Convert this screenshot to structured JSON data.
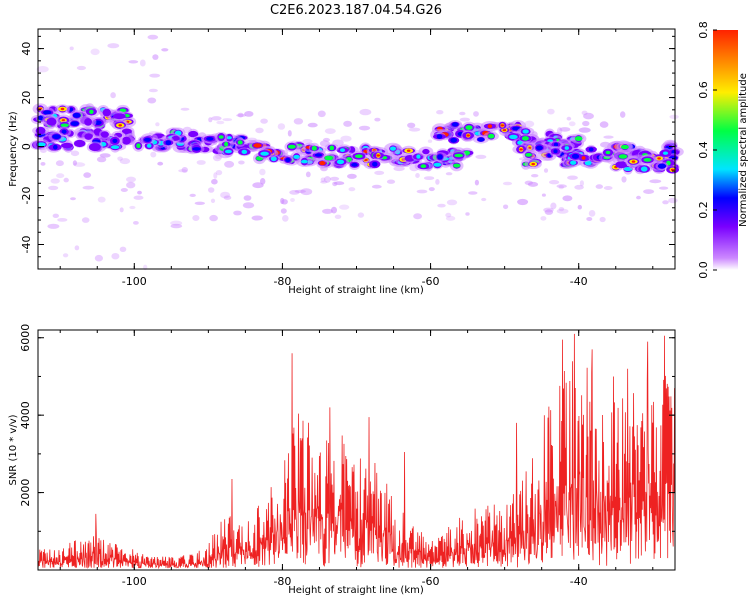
{
  "title": "C2E6.2023.187.04.54.G26",
  "colors": {
    "snr_line": "#ee2222",
    "axes": "#000000",
    "colormap": [
      "#ffffff",
      "#cc88ff",
      "#7a00ff",
      "#0000ff",
      "#00e5ff",
      "#00ff44",
      "#ffee00",
      "#ff2200"
    ]
  },
  "chart_data": [
    {
      "type": "heatmap",
      "xlabel": "Height of straight line (km)",
      "ylabel": "Frequency (Hz)",
      "xlim": [
        -113,
        -27
      ],
      "ylim": [
        -50,
        48
      ],
      "xticks": [
        -100,
        -80,
        -60,
        -40
      ],
      "yticks": [
        -40,
        -20,
        0,
        20,
        40
      ],
      "xtick_labels": [
        "-100",
        "-80",
        "-60",
        "-40"
      ],
      "ytick_labels": [
        "-40",
        "-20",
        "0",
        "20",
        "40"
      ],
      "grid": false,
      "colorbar": {
        "label": "Normalized spectral amplitude",
        "range": [
          0,
          0.8
        ],
        "ticks": [
          0,
          0.2,
          0.4,
          0.6,
          0.8
        ],
        "tick_labels": [
          "0.0",
          "0.2",
          "0.4",
          "0.6",
          "0.8"
        ]
      },
      "bands": [
        {
          "x_start": -113,
          "x_end": -100,
          "freq": 12,
          "amp": 0.55
        },
        {
          "x_start": -113,
          "x_end": -100,
          "freq": 3,
          "amp": 0.35
        },
        {
          "x_start": -100,
          "x_end": -92,
          "freq": 2.5,
          "amp": 0.4
        },
        {
          "x_start": -92,
          "x_end": -84,
          "freq": 1,
          "amp": 0.45
        },
        {
          "x_start": -84,
          "x_end": -76,
          "freq": -3,
          "amp": 0.75
        },
        {
          "x_start": -76,
          "x_end": -68,
          "freq": -4,
          "amp": 0.7
        },
        {
          "x_start": -68,
          "x_end": -62,
          "freq": -4,
          "amp": 0.6
        },
        {
          "x_start": -62,
          "x_end": -55,
          "freq": -5,
          "amp": 0.45
        },
        {
          "x_start": -60,
          "x_end": -48,
          "freq": 6,
          "amp": 0.75
        },
        {
          "x_start": -48,
          "x_end": -40,
          "freq": 3,
          "amp": 0.45
        },
        {
          "x_start": -48,
          "x_end": -38,
          "freq": -4,
          "amp": 0.7
        },
        {
          "x_start": -38,
          "x_end": -27,
          "freq": -2,
          "amp": 0.7
        },
        {
          "x_start": -35,
          "x_end": -27,
          "freq": -6,
          "amp": 0.65
        }
      ]
    },
    {
      "type": "line",
      "xlabel": "Height of straight line (km)",
      "ylabel": "SNR (10 * v/v)",
      "xlim": [
        -113,
        -27
      ],
      "ylim": [
        0,
        6200
      ],
      "xticks": [
        -100,
        -80,
        -60,
        -40
      ],
      "yticks": [
        2000,
        4000,
        6000
      ],
      "xtick_labels": [
        "-100",
        "-80",
        "-60",
        "-40"
      ],
      "ytick_labels": [
        "2000",
        "4000",
        "6000"
      ],
      "grid": false,
      "series": [
        {
          "x_start": -113,
          "x_end": -27,
          "envelope": [
            [
              -113,
              550
            ],
            [
              -110,
              550
            ],
            [
              -107,
              900
            ],
            [
              -105,
              1000
            ],
            [
              -102,
              650
            ],
            [
              -98,
              400
            ],
            [
              -93,
              380
            ],
            [
              -90,
              650
            ],
            [
              -88,
              1500
            ],
            [
              -85,
              1200
            ],
            [
              -82,
              2000
            ],
            [
              -80,
              2900
            ],
            [
              -78,
              4300
            ],
            [
              -75,
              3500
            ],
            [
              -72,
              3600
            ],
            [
              -70,
              3000
            ],
            [
              -68,
              2900
            ],
            [
              -65,
              2100
            ],
            [
              -62,
              1100
            ],
            [
              -59,
              850
            ],
            [
              -56,
              1400
            ],
            [
              -53,
              1700
            ],
            [
              -50,
              1700
            ],
            [
              -48,
              2200
            ],
            [
              -46,
              3000
            ],
            [
              -44,
              4500
            ],
            [
              -42,
              5200
            ],
            [
              -40,
              5800
            ],
            [
              -38,
              5000
            ],
            [
              -36,
              4400
            ],
            [
              -34,
              4900
            ],
            [
              -31,
              5000
            ],
            [
              -29,
              5400
            ],
            [
              -27,
              4800
            ]
          ],
          "spikes": [
            [
              -105.2,
              1450
            ],
            [
              -86.8,
              2350
            ],
            [
              -78.7,
              5600
            ],
            [
              -73.6,
              4200
            ],
            [
              -68.3,
              3950
            ],
            [
              -63.5,
              3050
            ],
            [
              -48.4,
              3800
            ],
            [
              -42.2,
              5950
            ],
            [
              -40.6,
              6100
            ],
            [
              -38.2,
              5700
            ],
            [
              -35.3,
              5000
            ],
            [
              -33.4,
              5200
            ],
            [
              -30.7,
              5900
            ],
            [
              -28.4,
              6050
            ]
          ]
        }
      ]
    }
  ]
}
